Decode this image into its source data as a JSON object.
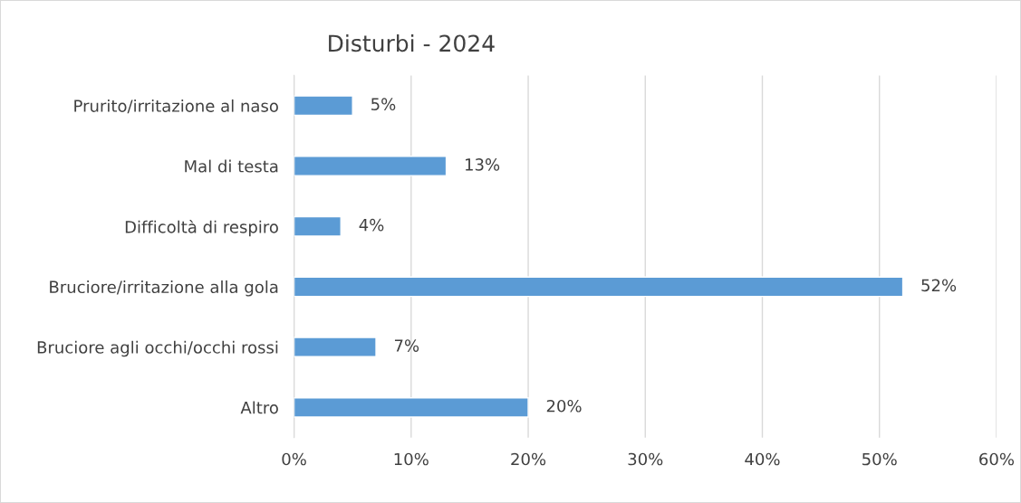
{
  "chart_data": {
    "type": "bar",
    "orientation": "horizontal",
    "title": "Disturbi - 2024",
    "categories": [
      "Prurito/irritazione al naso",
      "Mal di testa",
      "Difficoltà di respiro",
      "Bruciore/irritazione alla gola",
      "Bruciore agli occhi/occhi rossi",
      "Altro"
    ],
    "values": [
      5,
      13,
      4,
      52,
      7,
      20
    ],
    "value_labels": [
      "5%",
      "13%",
      "4%",
      "52%",
      "7%",
      "20%"
    ],
    "color": "#5b9bd5",
    "xlim": [
      0,
      60
    ],
    "xticks": [
      {
        "value": 0,
        "label": "0%"
      },
      {
        "value": 10,
        "label": "10%"
      },
      {
        "value": 20,
        "label": "20%"
      },
      {
        "value": 30,
        "label": "30%"
      },
      {
        "value": 40,
        "label": "40%"
      },
      {
        "value": 50,
        "label": "50%"
      },
      {
        "value": 60,
        "label": "60%"
      }
    ],
    "grid": "x",
    "legend": false
  }
}
